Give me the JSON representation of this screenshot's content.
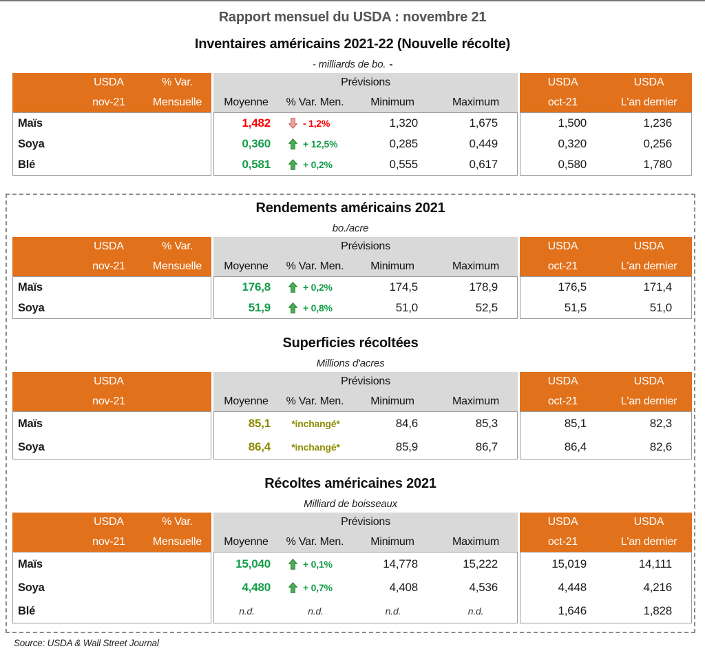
{
  "page": {
    "title": "Rapport mensuel du USDA : novembre 21",
    "subtitle": "Inventaires américains 2021-22 (Nouvelle récolte)",
    "source": "Source: USDA & Wall Street Journal"
  },
  "colors": {
    "orange": "#E2711B",
    "header_gray": "#D9D9D9",
    "title_gray": "#545454",
    "green": "#149C49",
    "red": "#FE0000",
    "olive": "#8C8A00",
    "arrow_up_fill": "#4CAE54",
    "arrow_up_stroke": "#1E7B2C",
    "arrow_down_fill": "#E9A29F",
    "arrow_down_stroke": "#C25B56"
  },
  "header_labels": {
    "usda": "USDA",
    "nov21": "nov-21",
    "pct_var": "% Var.",
    "mensuelle": "Mensuelle",
    "previsions": "Prévisions",
    "moyenne": "Moyenne",
    "pct_var_men": "% Var. Men.",
    "minimum": "Minimum",
    "maximum": "Maximum",
    "oct21": "oct-21",
    "last_year": "L'an dernier"
  },
  "sections": [
    {
      "id": "inventaires",
      "unit": "- milliards de bo.",
      "unit_suffix": "-",
      "show_var_header": true,
      "rows": [
        {
          "label": "Maïs",
          "moyenne": "1,482",
          "trend": "down",
          "variation": "- 1,2%",
          "color": "red",
          "minimum": "1,320",
          "maximum": "1,675",
          "oct": "1,500",
          "last": "1,236"
        },
        {
          "label": "Soya",
          "moyenne": "0,360",
          "trend": "up",
          "variation": "+ 12,5%",
          "color": "green",
          "minimum": "0,285",
          "maximum": "0,449",
          "oct": "0,320",
          "last": "0,256"
        },
        {
          "label": "Blé",
          "moyenne": "0,581",
          "trend": "up",
          "variation": "+ 0,2%",
          "color": "green",
          "minimum": "0,555",
          "maximum": "0,617",
          "oct": "0,580",
          "last": "1,780"
        }
      ]
    },
    {
      "id": "rendements",
      "title": "Rendements américains 2021",
      "unit": "bo./acre",
      "show_var_header": true,
      "rows": [
        {
          "label": "Maïs",
          "moyenne": "176,8",
          "trend": "up",
          "variation": "+ 0,2%",
          "color": "green",
          "minimum": "174,5",
          "maximum": "178,9",
          "oct": "176,5",
          "last": "171,4"
        },
        {
          "label": "Soya",
          "moyenne": "51,9",
          "trend": "up",
          "variation": "+ 0,8%",
          "color": "green",
          "minimum": "51,0",
          "maximum": "52,5",
          "oct": "51,5",
          "last": "51,0"
        }
      ]
    },
    {
      "id": "superficies",
      "title": "Superficies récoltées",
      "unit": "Millions d'acres",
      "show_var_header": false,
      "rows": [
        {
          "label": "Maïs",
          "moyenne": "85,1",
          "variation": "*inchangé*",
          "color": "olive",
          "minimum": "84,6",
          "maximum": "85,3",
          "oct": "85,1",
          "last": "82,3"
        },
        {
          "label": "Soya",
          "moyenne": "86,4",
          "variation": "*inchangé*",
          "color": "olive",
          "minimum": "85,9",
          "maximum": "86,7",
          "oct": "86,4",
          "last": "82,6"
        }
      ]
    },
    {
      "id": "recoltes",
      "title": "Récoltes américaines 2021",
      "unit": "Milliard de boisseaux",
      "show_var_header": true,
      "rows": [
        {
          "label": "Maïs",
          "moyenne": "15,040",
          "trend": "up",
          "variation": "+ 0,1%",
          "color": "green",
          "minimum": "14,778",
          "maximum": "15,222",
          "oct": "15,019",
          "last": "14,111"
        },
        {
          "label": "Soya",
          "moyenne": "4,480",
          "trend": "up",
          "variation": "+ 0,7%",
          "color": "green",
          "minimum": "4,408",
          "maximum": "4,536",
          "oct": "4,448",
          "last": "4,216"
        },
        {
          "label": "Blé",
          "moyenne": "n.d.",
          "variation": "n.d.",
          "color": "nd",
          "nd": true,
          "minimum": "n.d.",
          "maximum": "n.d.",
          "oct": "1,646",
          "last": "1,828"
        }
      ]
    }
  ]
}
